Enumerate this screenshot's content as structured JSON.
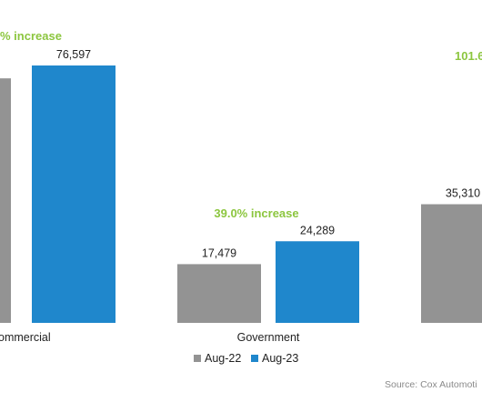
{
  "chart_data": {
    "type": "bar",
    "categories": [
      "ommercial",
      "Government",
      ""
    ],
    "series": [
      {
        "name": "Aug-22",
        "color": "#939393",
        "values": [
          null,
          17479,
          35310
        ]
      },
      {
        "name": "Aug-23",
        "color": "#1f87cc",
        "values": [
          76597,
          24289,
          null
        ]
      }
    ],
    "data_labels": {
      "Aug-22": [
        "",
        "17,479",
        "35,310"
      ],
      "Aug-23": [
        "76,597",
        "24,289",
        ""
      ]
    },
    "annotations": [
      "% increase",
      "39.0% increase",
      "101.6"
    ],
    "annotation_color": "#8cc63f",
    "source": "Source: Cox Automoti",
    "legend_position": "bottom-center",
    "grid": false,
    "ylim": [
      0,
      90000
    ]
  }
}
